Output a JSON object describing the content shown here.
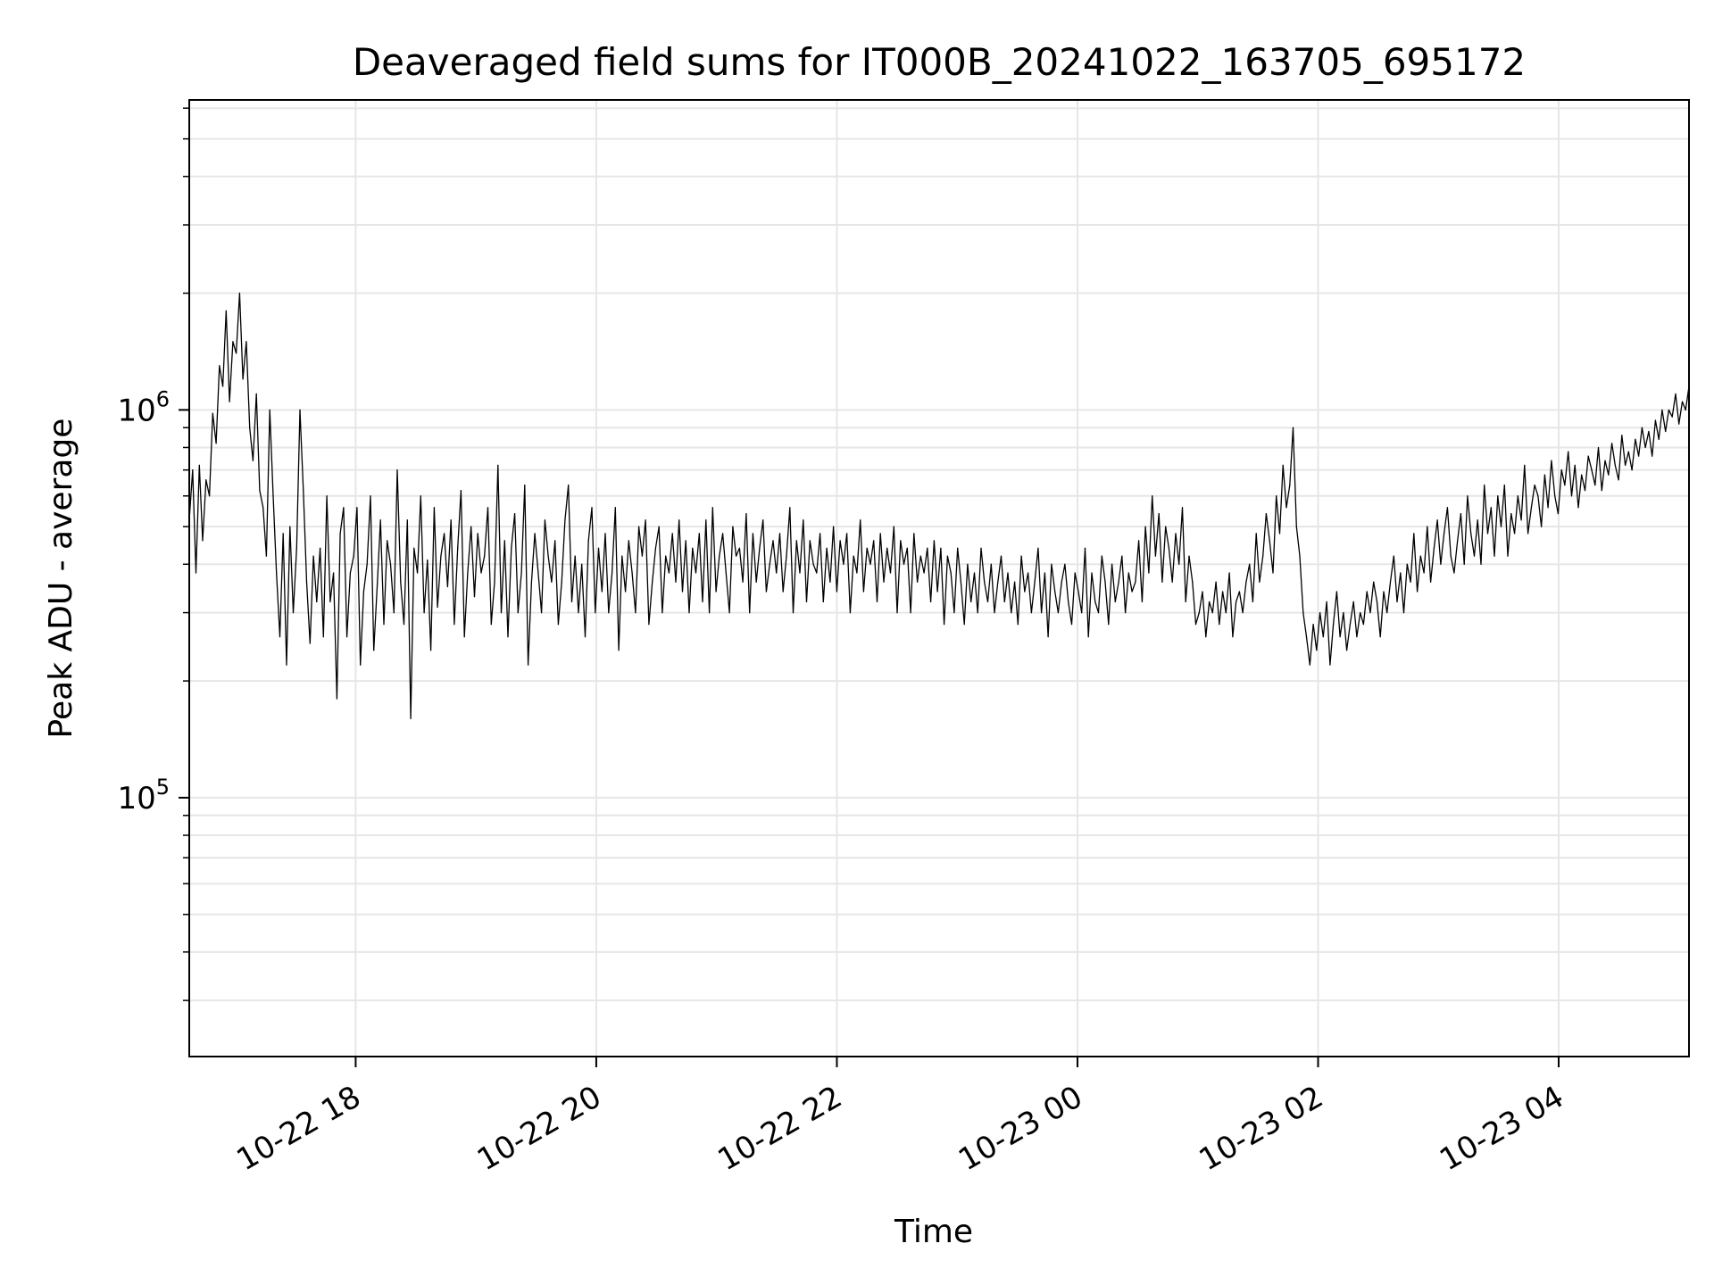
{
  "chart_data": {
    "type": "line",
    "title": "Deaveraged field sums for IT000B_20241022_163705_695172",
    "xlabel": "Time",
    "ylabel": "Peak ADU - average",
    "xlim": [
      "2024-10-22 16:37",
      "2024-10-23 05:05"
    ],
    "ylim": [
      21500,
      6300000
    ],
    "yscale": "log",
    "grid": true,
    "line_color": "#000000",
    "x_ticks": [
      {
        "value": "2024-10-22 18:00",
        "label": "10-22 18"
      },
      {
        "value": "2024-10-22 20:00",
        "label": "10-22 20"
      },
      {
        "value": "2024-10-22 22:00",
        "label": "10-22 22"
      },
      {
        "value": "2024-10-23 00:00",
        "label": "10-23 00"
      },
      {
        "value": "2024-10-23 02:00",
        "label": "10-23 02"
      },
      {
        "value": "2024-10-23 04:00",
        "label": "10-23 04"
      }
    ],
    "y_ticks": [
      {
        "value": 100000,
        "base": "10",
        "exp": "5"
      },
      {
        "value": 1000000,
        "base": "10",
        "exp": "6"
      }
    ],
    "series": [
      {
        "x_start": "2024-10-22 16:37",
        "x_end": "2024-10-23 05:05",
        "values": [
          520000,
          700000,
          380000,
          720000,
          460000,
          660000,
          600000,
          980000,
          820000,
          1300000,
          1150000,
          1800000,
          1050000,
          1500000,
          1400000,
          2000000,
          1200000,
          1500000,
          900000,
          740000,
          1100000,
          620000,
          560000,
          420000,
          1000000,
          600000,
          380000,
          260000,
          480000,
          220000,
          500000,
          300000,
          440000,
          1000000,
          620000,
          360000,
          250000,
          420000,
          320000,
          440000,
          260000,
          600000,
          320000,
          380000,
          180000,
          480000,
          560000,
          260000,
          380000,
          420000,
          560000,
          220000,
          340000,
          400000,
          600000,
          240000,
          350000,
          520000,
          280000,
          460000,
          400000,
          300000,
          700000,
          360000,
          280000,
          520000,
          160000,
          440000,
          380000,
          600000,
          300000,
          410000,
          240000,
          560000,
          310000,
          420000,
          480000,
          350000,
          520000,
          280000,
          440000,
          620000,
          260000,
          380000,
          500000,
          330000,
          480000,
          380000,
          420000,
          560000,
          280000,
          360000,
          720000,
          300000,
          460000,
          260000,
          440000,
          540000,
          300000,
          380000,
          640000,
          220000,
          360000,
          480000,
          380000,
          300000,
          520000,
          420000,
          360000,
          460000,
          280000,
          360000,
          520000,
          640000,
          320000,
          420000,
          300000,
          400000,
          260000,
          460000,
          560000,
          300000,
          440000,
          340000,
          480000,
          300000,
          380000,
          560000,
          240000,
          420000,
          340000,
          460000,
          380000,
          300000,
          500000,
          420000,
          520000,
          280000,
          360000,
          440000,
          500000,
          300000,
          420000,
          380000,
          480000,
          360000,
          520000,
          340000,
          460000,
          300000,
          440000,
          380000,
          480000,
          320000,
          520000,
          300000,
          560000,
          340000,
          420000,
          480000,
          380000,
          300000,
          500000,
          420000,
          440000,
          360000,
          540000,
          300000,
          480000,
          360000,
          440000,
          520000,
          340000,
          400000,
          460000,
          380000,
          480000,
          340000,
          420000,
          560000,
          300000,
          460000,
          380000,
          520000,
          320000,
          460000,
          400000,
          380000,
          480000,
          320000,
          440000,
          360000,
          500000,
          340000,
          460000,
          400000,
          480000,
          300000,
          420000,
          380000,
          520000,
          340000,
          440000,
          400000,
          460000,
          320000,
          480000,
          360000,
          440000,
          380000,
          500000,
          300000,
          460000,
          400000,
          440000,
          300000,
          480000,
          360000,
          420000,
          380000,
          440000,
          320000,
          460000,
          340000,
          440000,
          280000,
          420000,
          380000,
          300000,
          440000,
          360000,
          280000,
          400000,
          320000,
          380000,
          300000,
          440000,
          360000,
          320000,
          400000,
          300000,
          360000,
          420000,
          320000,
          380000,
          300000,
          360000,
          280000,
          420000,
          340000,
          380000,
          300000,
          360000,
          440000,
          300000,
          380000,
          260000,
          400000,
          340000,
          300000,
          360000,
          400000,
          320000,
          280000,
          380000,
          340000,
          300000,
          440000,
          260000,
          380000,
          320000,
          300000,
          420000,
          360000,
          280000,
          400000,
          320000,
          360000,
          420000,
          300000,
          380000,
          340000,
          360000,
          460000,
          320000,
          500000,
          380000,
          600000,
          420000,
          540000,
          360000,
          500000,
          440000,
          360000,
          480000,
          400000,
          560000,
          320000,
          420000,
          360000,
          280000,
          300000,
          340000,
          260000,
          320000,
          300000,
          360000,
          280000,
          340000,
          300000,
          380000,
          260000,
          320000,
          340000,
          300000,
          360000,
          400000,
          320000,
          480000,
          360000,
          420000,
          540000,
          460000,
          380000,
          600000,
          480000,
          720000,
          560000,
          640000,
          900000,
          500000,
          420000,
          300000,
          260000,
          220000,
          280000,
          240000,
          300000,
          260000,
          320000,
          220000,
          280000,
          340000,
          260000,
          300000,
          240000,
          280000,
          320000,
          260000,
          300000,
          280000,
          340000,
          300000,
          360000,
          320000,
          260000,
          340000,
          300000,
          360000,
          420000,
          320000,
          380000,
          300000,
          400000,
          360000,
          480000,
          340000,
          420000,
          380000,
          500000,
          360000,
          440000,
          520000,
          400000,
          480000,
          560000,
          420000,
          380000,
          460000,
          540000,
          400000,
          600000,
          480000,
          420000,
          520000,
          400000,
          640000,
          480000,
          560000,
          420000,
          600000,
          500000,
          640000,
          420000,
          540000,
          480000,
          600000,
          520000,
          720000,
          480000,
          560000,
          640000,
          600000,
          500000,
          680000,
          560000,
          740000,
          600000,
          540000,
          700000,
          640000,
          780000,
          600000,
          720000,
          560000,
          680000,
          620000,
          760000,
          700000,
          640000,
          800000,
          620000,
          740000,
          680000,
          820000,
          720000,
          660000,
          860000,
          720000,
          780000,
          700000,
          840000,
          760000,
          900000,
          800000,
          880000,
          760000,
          940000,
          840000,
          1000000,
          880000,
          1000000,
          960000,
          1100000,
          920000,
          1050000,
          1000000,
          1150000
        ]
      }
    ]
  }
}
